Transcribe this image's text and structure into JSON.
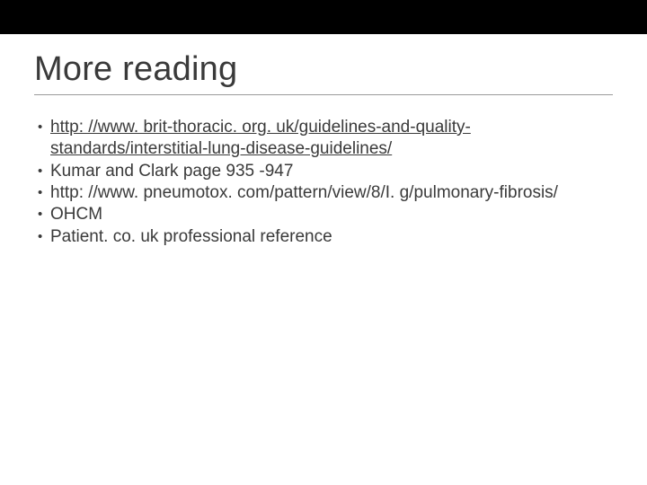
{
  "slide": {
    "top_bar_color": "#000000",
    "background_color": "#ffffff",
    "title_color": "#3a3a3a",
    "text_color": "#3a3a3a",
    "underline_color": "#9a9a9a",
    "title_fontsize": 38,
    "body_fontsize": 19,
    "title": "More reading",
    "bullets": [
      {
        "text": "http: //www. brit-thoracic. org. uk/guidelines-and-quality-standards/interstitial-lung-disease-guidelines/",
        "is_link": true
      },
      {
        "text": "Kumar and Clark page 935 -947",
        "is_link": false
      },
      {
        "text": "http: //www. pneumotox. com/pattern/view/8/I. g/pulmonary-fibrosis/",
        "is_link": false
      },
      {
        "text": "OHCM",
        "is_link": false
      },
      {
        "text": "Patient. co. uk professional reference",
        "is_link": false
      }
    ]
  }
}
